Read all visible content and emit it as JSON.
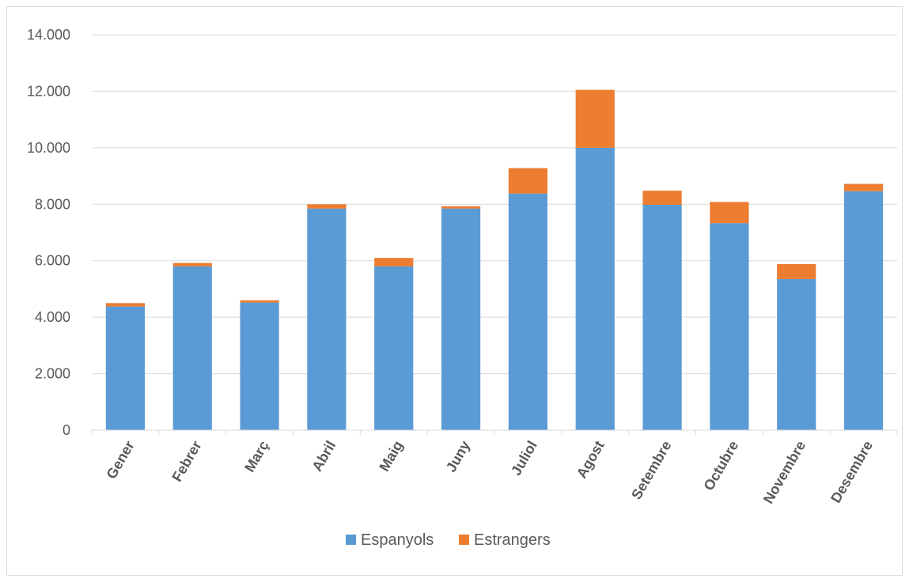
{
  "chart_data": {
    "type": "bar",
    "stacked": true,
    "title": "",
    "xlabel": "",
    "ylabel": "",
    "categories": [
      "Gener",
      "Febrer",
      "Març",
      "Abril",
      "Maig",
      "Juny",
      "Juliol",
      "Agost",
      "Setembre",
      "Octubre",
      "Novembre",
      "Desembre"
    ],
    "series": [
      {
        "name": "Espanyols",
        "color": "#5b9bd5",
        "values": [
          4380,
          5800,
          4520,
          7850,
          5800,
          7850,
          8380,
          10000,
          7980,
          7330,
          5350,
          8460
        ]
      },
      {
        "name": "Estrangers",
        "color": "#ed7d31",
        "values": [
          120,
          120,
          80,
          150,
          300,
          80,
          900,
          2050,
          500,
          750,
          530,
          260
        ]
      }
    ],
    "ylim": [
      0,
      14000
    ],
    "yticks": [
      0,
      2000,
      4000,
      6000,
      8000,
      10000,
      12000,
      14000
    ],
    "ytick_labels": [
      "0",
      "2.000",
      "4.000",
      "6.000",
      "8.000",
      "10.000",
      "12.000",
      "14.000"
    ],
    "grid": true,
    "legend_position": "bottom"
  }
}
